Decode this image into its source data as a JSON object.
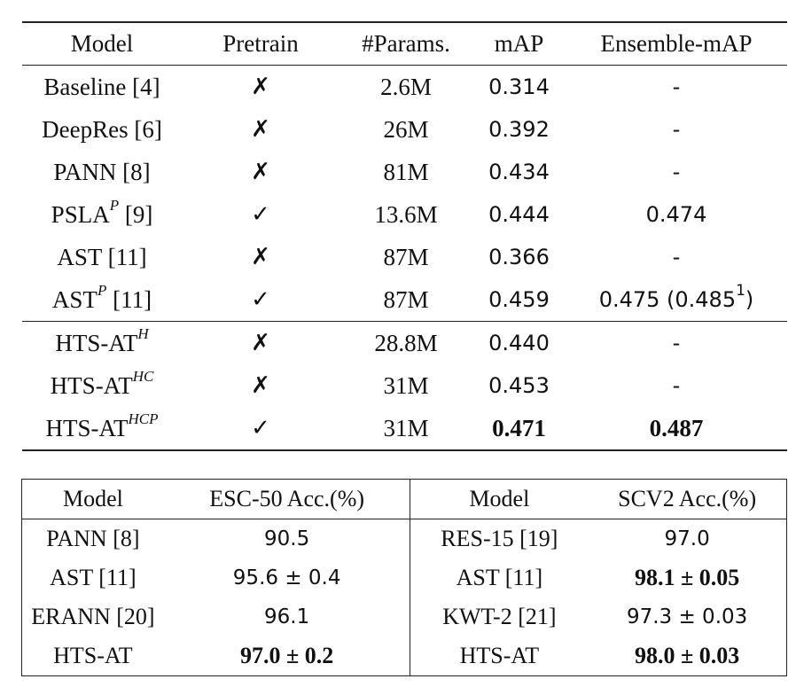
{
  "table1": {
    "headers": [
      "Model",
      "Pretrain",
      "#Params.",
      "mAP",
      "Ensemble-mAP"
    ],
    "rows": [
      {
        "model": "Baseline [4]",
        "sup": "",
        "model_after": "",
        "pretrain": "✗",
        "params": "2.6M",
        "map": "0.314",
        "ens": "-",
        "ens_sup": "",
        "ens_after": ""
      },
      {
        "model": "DeepRes [6]",
        "sup": "",
        "model_after": "",
        "pretrain": "✗",
        "params": "26M",
        "map": "0.392",
        "ens": "-",
        "ens_sup": "",
        "ens_after": ""
      },
      {
        "model": "PANN [8]",
        "sup": "",
        "model_after": "",
        "pretrain": "✗",
        "params": "81M",
        "map": "0.434",
        "ens": "-",
        "ens_sup": "",
        "ens_after": ""
      },
      {
        "model": "PSLA",
        "sup": "P",
        "model_after": " [9]",
        "pretrain": "✓",
        "params": "13.6M",
        "map": "0.444",
        "ens": "0.474",
        "ens_sup": "",
        "ens_after": ""
      },
      {
        "model": "AST [11]",
        "sup": "",
        "model_after": "",
        "pretrain": "✗",
        "params": "87M",
        "map": "0.366",
        "ens": "-",
        "ens_sup": "",
        "ens_after": ""
      },
      {
        "model": "AST",
        "sup": "P",
        "model_after": " [11]",
        "pretrain": "✓",
        "params": "87M",
        "map": "0.459",
        "ens": "0.475 (0.485",
        "ens_sup": "1",
        "ens_after": ")"
      }
    ],
    "rows_ours": [
      {
        "model": "HTS-AT",
        "sup": "H",
        "pretrain": "✗",
        "params": "28.8M",
        "map": "0.440",
        "ens": "-",
        "bold": false
      },
      {
        "model": "HTS-AT",
        "sup": "HC",
        "pretrain": "✗",
        "params": "31M",
        "map": "0.453",
        "ens": "-",
        "bold": false
      },
      {
        "model": "HTS-AT",
        "sup": "HCP",
        "pretrain": "✓",
        "params": "31M",
        "map": "0.471",
        "ens": "0.487",
        "bold": true
      }
    ]
  },
  "table2": {
    "headers": [
      "Model",
      "ESC-50 Acc.(%)",
      "Model",
      "SCV2 Acc.(%)"
    ],
    "rows": [
      {
        "m1": "PANN [8]",
        "v1": "90.5",
        "b1": false,
        "m2": "RES-15 [19]",
        "v2": "97.0",
        "b2": false
      },
      {
        "m1": "AST [11]",
        "v1": "95.6 ± 0.4",
        "b1": false,
        "m2": "AST [11]",
        "v2": "98.1 ± 0.05",
        "b2": true
      },
      {
        "m1": "ERANN [20]",
        "v1": "96.1",
        "b1": false,
        "m2": "KWT-2 [21]",
        "v2": "97.3 ± 0.03",
        "b2": false
      },
      {
        "m1": "HTS-AT",
        "v1": "97.0 ± 0.2",
        "b1": true,
        "m2": "HTS-AT",
        "v2": "98.0 ± 0.03",
        "b2": true
      }
    ]
  }
}
